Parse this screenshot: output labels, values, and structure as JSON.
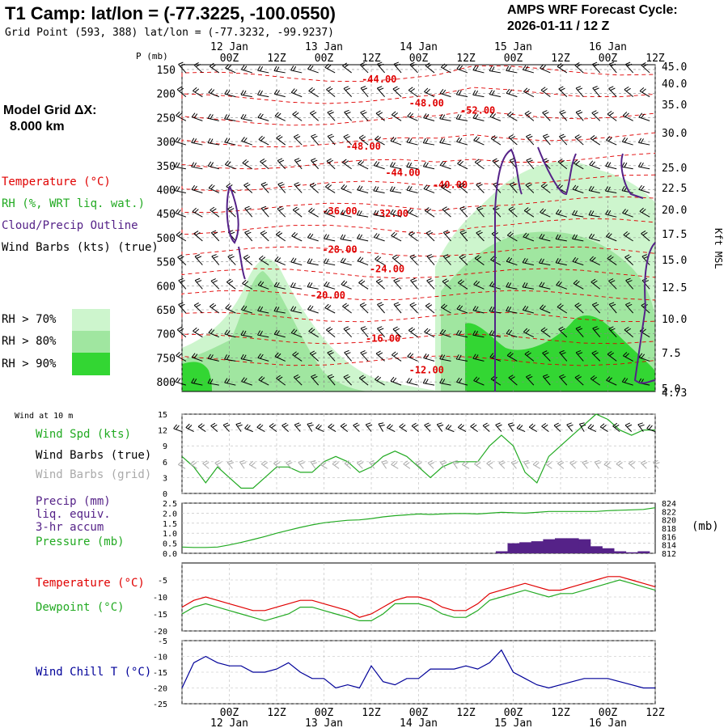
{
  "header": {
    "title": "T1 Camp:  lat/lon = (-77.3225, -100.0550)",
    "subtitle": "Grid Point (593, 388) lat/lon = (-77.3232, -99.9237)",
    "cycle_label": "AMPS WRF Forecast Cycle:",
    "cycle_value": "2026-01-11 / 12  Z",
    "grid_label": "Model Grid ΔX:",
    "grid_value": "8.000 km"
  },
  "legend": {
    "temperature": "Temperature (°C)",
    "rh": "RH (%, WRT liq. wat.)",
    "cloud": "Cloud/Precip Outline",
    "wind": "Wind Barbs (kts) (true)",
    "rh70": "RH > 70%",
    "rh80": "RH > 80%",
    "rh90": "RH > 90%",
    "wind_at_10m": "Wind at 10 m",
    "wind_spd": "Wind Spd (kts)",
    "wind_barbs_true": "Wind Barbs (true)",
    "wind_barbs_grid": "Wind Barbs (grid)",
    "precip1": "Precip (mm)",
    "precip2": "liq. equiv.",
    "precip3": "3-hr accum",
    "pressure": "Pressure (mb)",
    "pressure_unit": "(mb)",
    "temp2": "Temperature (°C)",
    "dewpoint": "Dewpoint (°C)",
    "windchill": "Wind Chill T (°C)"
  },
  "colors": {
    "temp": "#e00000",
    "rh": "#22aa22",
    "cloud": "#552288",
    "rh70": "#cdf5cd",
    "rh80": "#a0e6a0",
    "rh90": "#33d633",
    "windchill": "#000099",
    "grid_barb": "#aaaaaa"
  },
  "chart_data": [
    {
      "type": "time-height cross-section",
      "x_time_labels": [
        "00Z",
        "12Z",
        "00Z",
        "12Z",
        "00Z",
        "12Z",
        "00Z",
        "12Z",
        "00Z",
        "12Z"
      ],
      "x_date_labels": [
        "12 Jan",
        "13 Jan",
        "14 Jan",
        "15 Jan",
        "16 Jan"
      ],
      "hours_range": [
        0,
        120
      ],
      "y_label": "P (mb)",
      "pressure_ticks": [
        150,
        200,
        250,
        300,
        350,
        400,
        450,
        500,
        550,
        600,
        650,
        700,
        750,
        800
      ],
      "pressure_range": [
        820,
        140
      ],
      "height_ticks_kft": [
        "45.0",
        "40.0",
        "35.0",
        "30.0",
        "25.0",
        "22.5",
        "20.0",
        "17.5",
        "15.0",
        "12.5",
        "10.0",
        "7.5",
        "5.0",
        "4.73"
      ],
      "height_axis_label": "Kft MSL",
      "temperature_labels": [
        {
          "label": "-44.00",
          "hour": 50,
          "pressure": 170
        },
        {
          "label": "-48.00",
          "hour": 62,
          "pressure": 220
        },
        {
          "label": "-52.00",
          "hour": 75,
          "pressure": 235
        },
        {
          "label": "-48.00",
          "hour": 46,
          "pressure": 310
        },
        {
          "label": "-44.00",
          "hour": 56,
          "pressure": 365
        },
        {
          "label": "-40.00",
          "hour": 68,
          "pressure": 390
        },
        {
          "label": "-36.00",
          "hour": 40,
          "pressure": 445
        },
        {
          "label": "-32.00",
          "hour": 53,
          "pressure": 450
        },
        {
          "label": "-28.00",
          "hour": 40,
          "pressure": 525
        },
        {
          "label": "-24.00",
          "hour": 52,
          "pressure": 565
        },
        {
          "label": "-20.00",
          "hour": 37,
          "pressure": 620
        },
        {
          "label": "-16.00",
          "hour": 51,
          "pressure": 710
        },
        {
          "label": "-12.00",
          "hour": 62,
          "pressure": 775
        }
      ]
    },
    {
      "type": "line",
      "title": "Wind at 10 m",
      "x_hours": [
        0,
        3,
        6,
        9,
        12,
        15,
        18,
        21,
        24,
        27,
        30,
        33,
        36,
        39,
        42,
        45,
        48,
        51,
        54,
        57,
        60,
        63,
        66,
        69,
        72,
        75,
        78,
        81,
        84,
        87,
        90,
        93,
        96,
        99,
        102,
        105,
        108,
        111,
        114,
        117,
        120
      ],
      "wind_speed_kts": [
        7,
        5,
        2,
        5,
        3,
        1,
        1,
        3,
        5,
        5,
        4,
        4,
        6,
        7,
        6,
        4,
        5,
        7,
        8,
        7,
        5,
        3,
        5,
        6,
        6,
        6,
        9,
        11,
        9,
        4,
        2,
        7,
        9,
        11,
        13,
        15,
        14,
        12,
        11,
        12,
        12
      ],
      "ylim": [
        0,
        15
      ],
      "yticks": [
        0,
        3,
        6,
        9,
        12,
        15
      ]
    },
    {
      "type": "bar+line",
      "precip_hours": [
        81,
        84,
        87,
        90,
        93,
        96,
        99,
        102,
        105,
        108,
        111,
        114,
        117
      ],
      "precip_mm": [
        0.1,
        0.5,
        0.55,
        0.6,
        0.7,
        0.75,
        0.75,
        0.7,
        0.35,
        0.25,
        0.1,
        0.05,
        0.1
      ],
      "precip_ylim": [
        0,
        2.5
      ],
      "precip_yticks": [
        "0.0",
        "0.5",
        "1.0",
        "1.5",
        "2.0",
        "2.5"
      ],
      "pressure_mb": [
        813.5,
        813.4,
        813.4,
        813.5,
        814.0,
        814.6,
        815.3,
        816.0,
        816.8,
        817.5,
        818.2,
        818.8,
        819.3,
        819.6,
        819.9,
        820.0,
        820.3,
        820.7,
        821.0,
        821.2,
        821.4,
        821.3,
        821.4,
        821.5,
        821.5,
        821.4,
        821.6,
        821.8,
        821.7,
        821.6,
        821.8,
        822.0,
        822.0,
        822.0,
        822.0,
        822.0,
        822.2,
        822.3,
        822.4,
        822.5,
        822.9
      ],
      "pressure_ylim": [
        812,
        824
      ],
      "pressure_yticks": [
        "824",
        "822",
        "820",
        "818",
        "816",
        "814",
        "812"
      ]
    },
    {
      "type": "line",
      "temperature_c": [
        -13,
        -11,
        -10,
        -11,
        -12,
        -13,
        -14,
        -14,
        -13,
        -12,
        -11,
        -11,
        -12,
        -13,
        -14,
        -16,
        -15,
        -13,
        -11,
        -10,
        -10,
        -11,
        -13,
        -14,
        -14,
        -12,
        -9,
        -8,
        -7,
        -6,
        -7,
        -8,
        -8,
        -7,
        -6,
        -5,
        -4,
        -4,
        -5,
        -6,
        -7
      ],
      "dewpoint_c": [
        -15,
        -13,
        -12,
        -13,
        -14,
        -15,
        -16,
        -17,
        -16,
        -15,
        -13,
        -13,
        -14,
        -15,
        -16,
        -17,
        -17,
        -15,
        -12,
        -12,
        -12,
        -13,
        -15,
        -16,
        -16,
        -14,
        -11,
        -10,
        -9,
        -8,
        -9,
        -10,
        -9,
        -9,
        -8,
        -7,
        -6,
        -5,
        -6,
        -7,
        -8
      ],
      "ylim": [
        -20,
        0
      ],
      "yticks": [
        -5,
        -10,
        -15,
        -20
      ]
    },
    {
      "type": "line",
      "wind_chill_c": [
        -20,
        -12,
        -10,
        -12,
        -13,
        -13,
        -15,
        -15,
        -14,
        -12,
        -15,
        -17,
        -17,
        -20,
        -19,
        -20,
        -13,
        -18,
        -19,
        -17,
        -17,
        -14,
        -14,
        -14,
        -13,
        -14,
        -12,
        -8,
        -15,
        -17,
        -19,
        -20,
        -19,
        -18,
        -17,
        -17,
        -17,
        -18,
        -19,
        -20,
        -20
      ],
      "ylim": [
        -25,
        -5
      ],
      "yticks": [
        -5,
        -10,
        -15,
        -20,
        -25
      ]
    }
  ]
}
